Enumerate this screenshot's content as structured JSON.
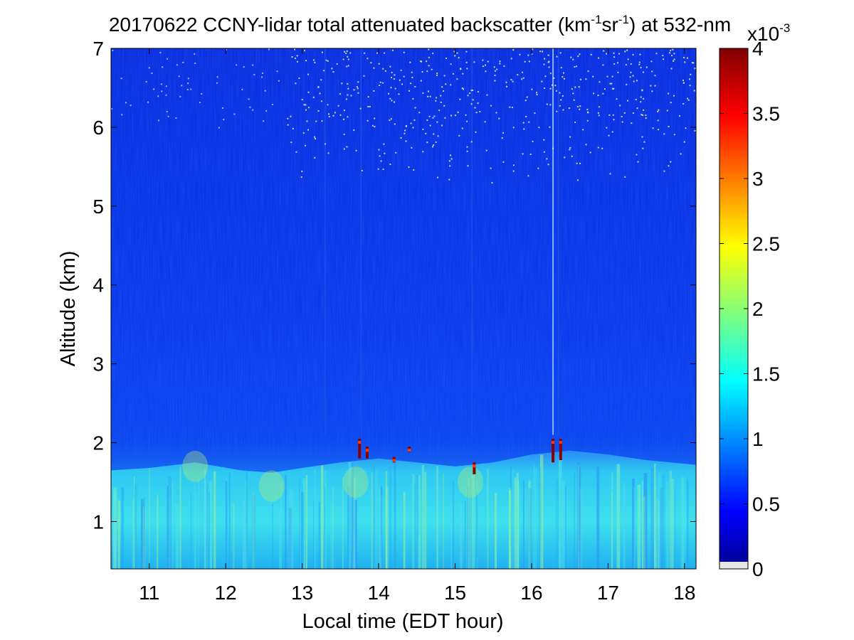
{
  "chart_data": {
    "type": "heatmap",
    "title": {
      "prefix": "20170622 CCNY-lidar total attenuated backscatter (km",
      "sup1": "-1",
      "mid": "sr",
      "sup2": "-1",
      "suffix": ") at 532-nm"
    },
    "xlabel": "Local time (EDT hour)",
    "ylabel": "Altitude (km)",
    "xlim": [
      10.5,
      18.15
    ],
    "ylim": [
      0.4,
      7
    ],
    "xticks": [
      "11",
      "12",
      "13",
      "14",
      "15",
      "16",
      "17",
      "18"
    ],
    "yticks": [
      "1",
      "2",
      "3",
      "4",
      "5",
      "6",
      "7"
    ],
    "colorbar": {
      "range": [
        0,
        0.004
      ],
      "ticks": [
        "0",
        "0.5",
        "1",
        "1.5",
        "2",
        "2.5",
        "3",
        "3.5",
        "4"
      ],
      "exponent_prefix": "x10",
      "exponent": "-3",
      "colormap": "jet"
    },
    "boundary_layer_top_km": [
      [
        10.5,
        1.65
      ],
      [
        11.0,
        1.68
      ],
      [
        11.6,
        1.75
      ],
      [
        12.2,
        1.65
      ],
      [
        12.6,
        1.62
      ],
      [
        13.0,
        1.68
      ],
      [
        13.5,
        1.75
      ],
      [
        14.0,
        1.8
      ],
      [
        14.5,
        1.75
      ],
      [
        15.0,
        1.7
      ],
      [
        15.5,
        1.75
      ],
      [
        16.0,
        1.85
      ],
      [
        16.5,
        1.9
      ],
      [
        17.0,
        1.85
      ],
      [
        17.5,
        1.78
      ],
      [
        18.15,
        1.72
      ]
    ],
    "cloud_features": [
      {
        "time": 13.75,
        "bottom_km": 1.8,
        "top_km": 2.05
      },
      {
        "time": 13.85,
        "bottom_km": 1.8,
        "top_km": 1.95
      },
      {
        "time": 14.2,
        "bottom_km": 1.75,
        "top_km": 1.82
      },
      {
        "time": 14.4,
        "bottom_km": 1.88,
        "top_km": 1.95
      },
      {
        "time": 15.25,
        "bottom_km": 1.6,
        "top_km": 1.75
      },
      {
        "time": 16.28,
        "bottom_km": 1.75,
        "top_km": 2.05
      },
      {
        "time": 16.38,
        "bottom_km": 1.78,
        "top_km": 2.05
      }
    ]
  }
}
